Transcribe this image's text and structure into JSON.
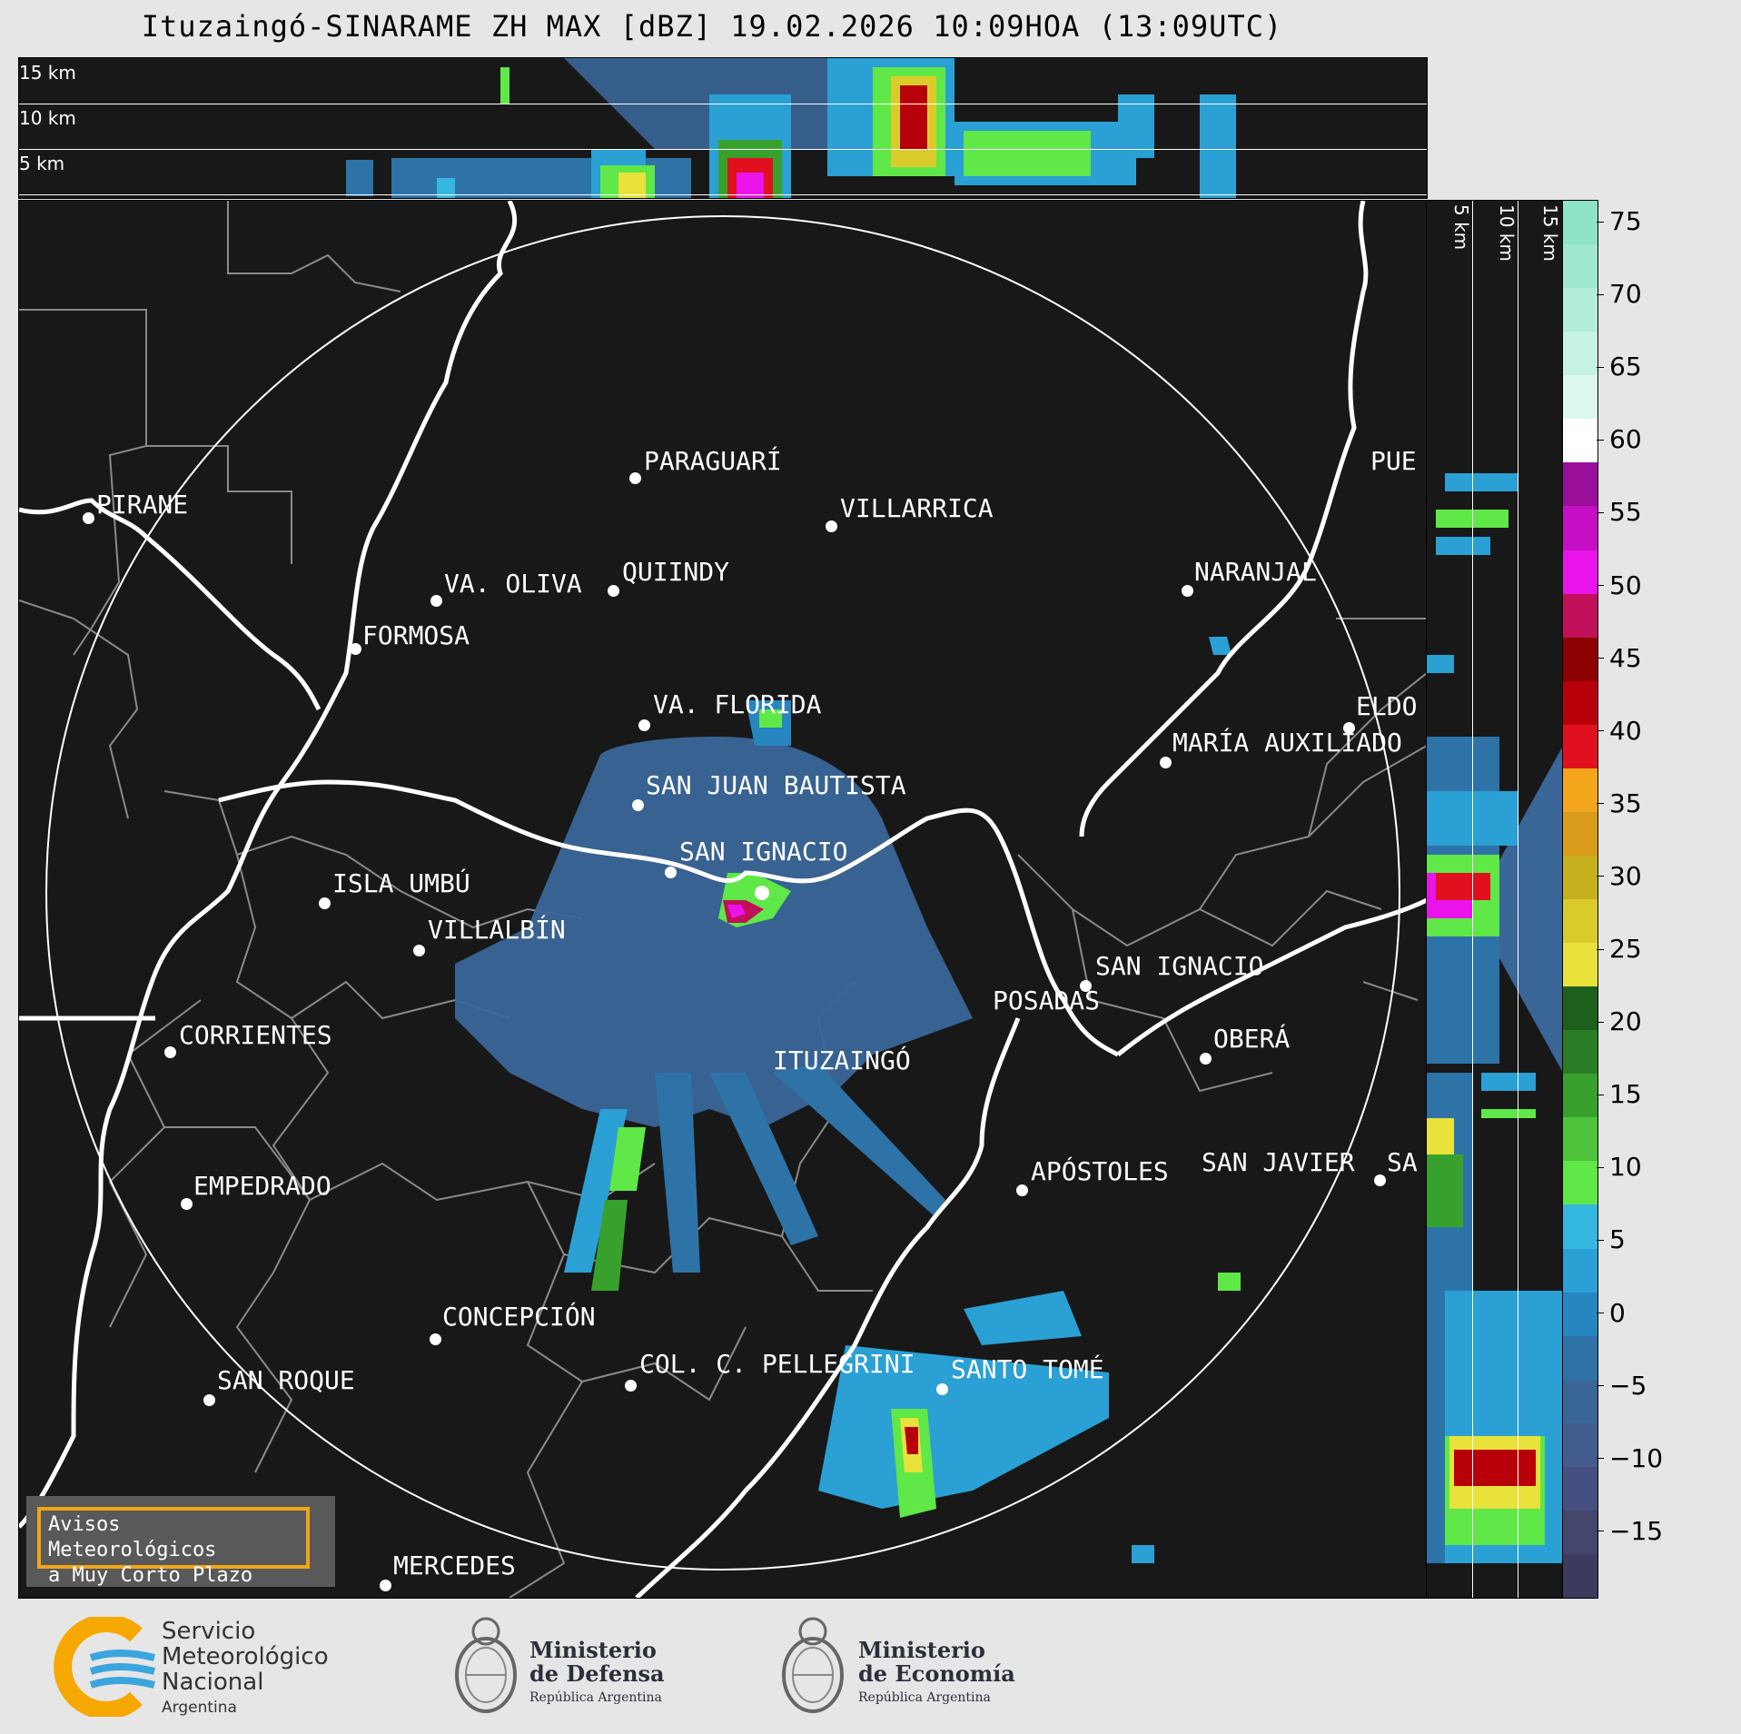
{
  "title": "Ituzaingó-SINARAME ZH MAX [dBZ] 19.02.2026 10:09HOA (13:09UTC)",
  "top_panel": {
    "labels": [
      "15 km",
      "10 km",
      "5 km"
    ]
  },
  "right_panel": {
    "labels": [
      "5 km",
      "10 km",
      "15 km"
    ]
  },
  "colorbar": {
    "ticks": [
      "75",
      "70",
      "65",
      "60",
      "55",
      "50",
      "45",
      "40",
      "35",
      "30",
      "25",
      "20",
      "15",
      "10",
      "5",
      "0",
      "−5",
      "−10",
      "−15"
    ],
    "colors": [
      "#8fe3c7",
      "#9fe8cf",
      "#b2eed8",
      "#c6f3e2",
      "#daf8ec",
      "#ffffff",
      "#9a0f9a",
      "#c40fc4",
      "#ea14ea",
      "#c0105a",
      "#8b0000",
      "#b8000b",
      "#e0101e",
      "#f3a51b",
      "#d99b1a",
      "#c7b01e",
      "#d9cc2a",
      "#e8e23b",
      "#1e5f1e",
      "#2a7d24",
      "#38a12d",
      "#4dc43a",
      "#5fe847",
      "#34b8e0",
      "#2aa0d4",
      "#2785c0",
      "#2d73a8",
      "#3a6698",
      "#435c8e",
      "#465080",
      "#44466e",
      "#3c3b5e"
    ]
  },
  "cities": [
    {
      "name": "PIRANE"
    },
    {
      "name": "PARAGUARÍ"
    },
    {
      "name": "VILLARRICA"
    },
    {
      "name": "QUIINDY"
    },
    {
      "name": "VA. OLIVA"
    },
    {
      "name": "FORMOSA"
    },
    {
      "name": "NARANJAL"
    },
    {
      "name": "PUE"
    },
    {
      "name": "VA. FLORIDA"
    },
    {
      "name": "ELDO"
    },
    {
      "name": "MARÍA AUXILIADO"
    },
    {
      "name": "SAN JUAN BAUTISTA"
    },
    {
      "name": "SAN IGNACIO"
    },
    {
      "name": "ISLA UMBÚ"
    },
    {
      "name": "VILLALBÍN"
    },
    {
      "name": "SAN IGNACIO"
    },
    {
      "name": "POSADAS"
    },
    {
      "name": "CORRIENTES"
    },
    {
      "name": "ITUZAINGÓ"
    },
    {
      "name": "OBERÁ"
    },
    {
      "name": "EMPEDRADO"
    },
    {
      "name": "APÓSTOLES"
    },
    {
      "name": "SAN JAVIER"
    },
    {
      "name": "SA"
    },
    {
      "name": "CONCEPCIÓN"
    },
    {
      "name": "COL. C. PELLEGRINI"
    },
    {
      "name": "SANTO TOMÉ"
    },
    {
      "name": "SAN ROQUE"
    },
    {
      "name": "MERCEDES"
    }
  ],
  "warning": {
    "line1": "Avisos Meteorológicos",
    "line2": "a Muy Corto Plazo"
  },
  "logos": {
    "smn": {
      "line1": "Servicio",
      "line2": "Meteorológico",
      "line3": "Nacional",
      "line4": "Argentina"
    },
    "defensa": {
      "line1": "Ministerio",
      "line2": "de Defensa",
      "line3": "República Argentina"
    },
    "economia": {
      "line1": "Ministerio",
      "line2": "de Economía",
      "line3": "República Argentina"
    }
  }
}
